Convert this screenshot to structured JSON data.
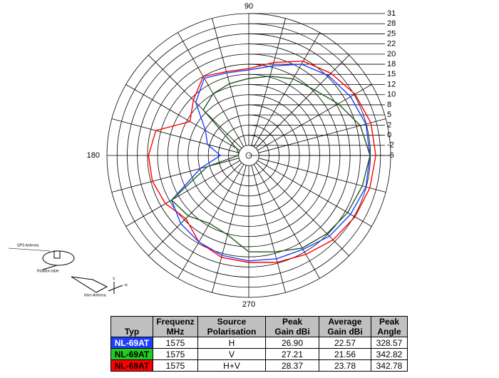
{
  "chart_data": {
    "type": "polar",
    "angle_labels": [
      "90",
      "180",
      "270"
    ],
    "angle_ticks": [
      90,
      180,
      270
    ],
    "rlim": [
      -6,
      31
    ],
    "rticks": [
      -6,
      -2,
      0,
      2,
      5,
      8,
      10,
      12,
      15,
      18,
      20,
      22,
      25,
      28,
      31
    ],
    "x": [
      0,
      15,
      30,
      45,
      60,
      75,
      90,
      105,
      120,
      135,
      150,
      165,
      180,
      195,
      210,
      225,
      240,
      255,
      270,
      285,
      300,
      315,
      330,
      345
    ],
    "series": [
      {
        "name": "NL-69AT",
        "color": "#ff0000",
        "values": [
          26.6,
          26.4,
          25.3,
          23.4,
          21.5,
          19.0,
          16.7,
          16.7,
          18.0,
          14.2,
          11.4,
          19.0,
          19.8,
          19.7,
          19.0,
          17.4,
          19.7,
          20.8,
          21.1,
          21.8,
          22.8,
          24.3,
          25.3,
          26.1
        ]
      },
      {
        "name": "NL-69AT",
        "color": "#1f3fff",
        "values": [
          24.9,
          24.9,
          23.8,
          22.4,
          20.8,
          18.3,
          16.3,
          16.3,
          17.4,
          13.2,
          7.8,
          5.7,
          1.6,
          7.8,
          17.4,
          19.0,
          19.7,
          20.4,
          20.8,
          21.1,
          21.4,
          22.8,
          23.8,
          24.9
        ]
      },
      {
        "name": "NL-69AT",
        "color": "#1e5a1e",
        "values": [
          24.9,
          23.2,
          20.4,
          18.3,
          17.2,
          15.3,
          13.8,
          13.0,
          12.1,
          10.7,
          -1.2,
          -1.9,
          -1.9,
          5.7,
          17.4,
          16.3,
          14.2,
          15.3,
          19.0,
          19.7,
          21.1,
          21.8,
          22.8,
          23.8
        ]
      }
    ]
  },
  "diagram": {
    "gps": "GPS Antenna",
    "table": "Rotation table",
    "horn": "Horn Antenna",
    "v": "V",
    "h": "H"
  },
  "table": {
    "header": [
      [
        "Typ"
      ],
      [
        "Frequenz",
        "MHz"
      ],
      [
        "Source",
        "Polarisation"
      ],
      [
        "Peak",
        "Gain dBi"
      ],
      [
        "Average",
        "Gain dBi"
      ],
      [
        "Peak",
        "Angle"
      ]
    ],
    "rows": [
      {
        "color": "#1f3fff",
        "text_color": "#ffffff",
        "cells": [
          "NL-69AT",
          "1575",
          "H",
          "26.90",
          "22.57",
          "328.57"
        ]
      },
      {
        "color": "#22cc22",
        "text_color": "#000000",
        "cells": [
          "NL-69AT",
          "1575",
          "V",
          "27.21",
          "21.56",
          "342.82"
        ]
      },
      {
        "color": "#ff0000",
        "text_color": "#000000",
        "cells": [
          "NL-69AT",
          "1575",
          "H+V",
          "28.37",
          "23.78",
          "342.78"
        ]
      }
    ]
  }
}
